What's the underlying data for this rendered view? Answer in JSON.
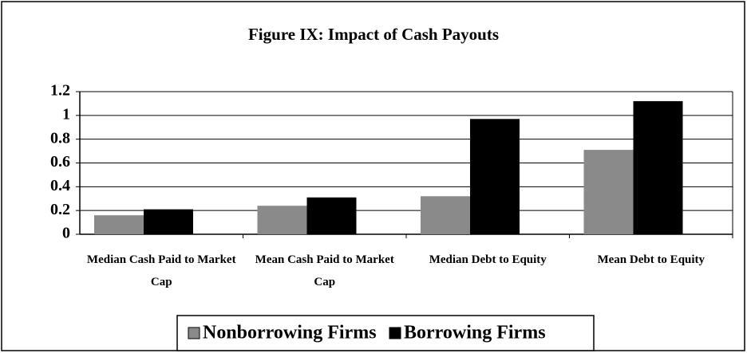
{
  "chart_data": {
    "type": "bar",
    "title": "Figure IX: Impact of Cash Payouts",
    "categories": [
      "Median Cash Paid to Market Cap",
      "Mean Cash Paid to Market Cap",
      "Median Debt to Equity",
      "Mean Debt to Equity"
    ],
    "series": [
      {
        "name": "Nonborrowing Firms",
        "color": "#8a8a8a",
        "values": [
          0.16,
          0.24,
          0.32,
          0.71
        ]
      },
      {
        "name": "Borrowing Firms",
        "color": "#000000",
        "values": [
          0.21,
          0.31,
          0.97,
          1.12
        ]
      }
    ],
    "ylim": [
      0,
      1.2
    ],
    "yticks": [
      0,
      0.2,
      0.4,
      0.6,
      0.8,
      1,
      1.2
    ],
    "grid": true,
    "legend": "bottom"
  }
}
